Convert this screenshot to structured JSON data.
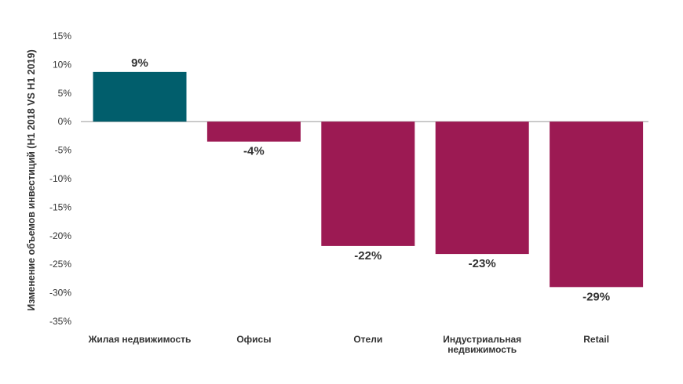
{
  "chart_data": {
    "type": "bar",
    "title": "",
    "xlabel": "",
    "ylabel": "Изменение объемов инвестиций (H1 2018 VS H1 2019)",
    "categories": [
      [
        "Жилая недвижимость"
      ],
      [
        "Офисы"
      ],
      [
        "Отели"
      ],
      [
        "Индустриальная",
        "недвижимость"
      ],
      [
        "Retail"
      ]
    ],
    "values": [
      8.7,
      -3.5,
      -21.8,
      -23.2,
      -29.0
    ],
    "data_labels": [
      "9%",
      "-4%",
      "-22%",
      "-23%",
      "-29%"
    ],
    "ylim": [
      -35,
      15
    ],
    "yticks": [
      15,
      10,
      5,
      0,
      -5,
      -10,
      -15,
      -20,
      -25,
      -30,
      -35
    ],
    "ytick_labels": [
      "15%",
      "10%",
      "5%",
      "0%",
      "-5%",
      "-10%",
      "-15%",
      "-20%",
      "-25%",
      "-30%",
      "-35%"
    ],
    "grid": false,
    "colors": {
      "positive": "#015e6c",
      "negative": "#9c1a53",
      "axis": "#999999",
      "text": "#333333"
    }
  }
}
